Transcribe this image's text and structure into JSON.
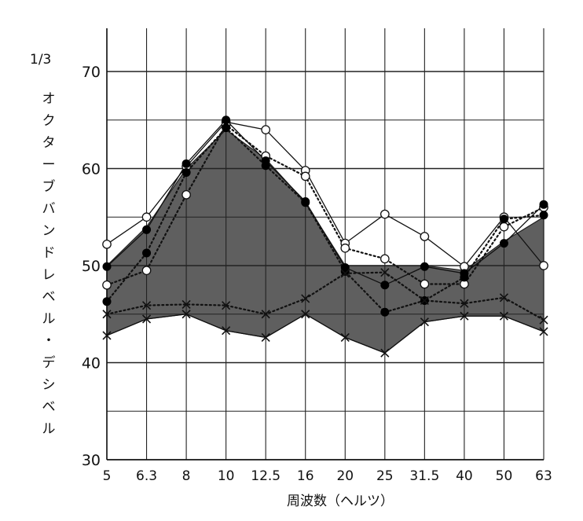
{
  "chart_data": {
    "type": "line",
    "ylabel_unit": "1/3",
    "ylabel": "オクターブバンドレベル・デシベル",
    "xlabel": "周波数（ヘルツ）",
    "categories": [
      "5",
      "6.3",
      "8",
      "10",
      "12.5",
      "16",
      "20",
      "25",
      "31.5",
      "40",
      "50",
      "63"
    ],
    "yticks": [
      "30",
      "40",
      "50",
      "60",
      "70"
    ],
    "ylim": [
      30,
      74.5
    ],
    "grid": true,
    "band": {
      "upper": [
        50,
        54,
        60,
        64,
        61,
        56.5,
        50,
        50,
        50,
        49.5,
        52.5,
        55
      ],
      "lower": [
        42.8,
        44.5,
        45,
        43.3,
        42.6,
        45,
        42.6,
        41,
        44.2,
        44.8,
        44.8,
        43.2
      ],
      "color": "#5f5f5f"
    },
    "series": [
      {
        "marker": "open-circle",
        "line": "solid",
        "values": [
          52.2,
          55,
          60.2,
          64.8,
          64,
          59.8,
          52.3,
          55.3,
          53,
          49.9,
          55,
          50
        ]
      },
      {
        "marker": "open-circle",
        "line": "dotted",
        "values": [
          48,
          49.5,
          57.3,
          64.5,
          61.3,
          59.2,
          51.8,
          50.7,
          48.1,
          48.1,
          54,
          56
        ]
      },
      {
        "marker": "filled-circle",
        "line": "solid",
        "values": [
          49.9,
          53.7,
          60.5,
          65,
          60.8,
          56.6,
          49.8,
          48,
          49.9,
          49.2,
          52.3,
          56.3
        ]
      },
      {
        "marker": "filled-circle",
        "line": "dotted",
        "values": [
          46.3,
          51.3,
          59.6,
          64.2,
          60.3,
          56.5,
          49.4,
          45.2,
          46.4,
          48.8,
          54.8,
          55.2
        ]
      },
      {
        "marker": "cross",
        "line": "dotted",
        "values": [
          45,
          45.9,
          46,
          45.9,
          45,
          46.6,
          49.2,
          49.3,
          46.4,
          46.1,
          46.7,
          44.4
        ]
      },
      {
        "marker": "cross",
        "line": "solid",
        "values": [
          42.8,
          44.5,
          45,
          43.3,
          42.6,
          45,
          42.6,
          41,
          44.2,
          44.8,
          44.8,
          43.2
        ]
      }
    ]
  }
}
